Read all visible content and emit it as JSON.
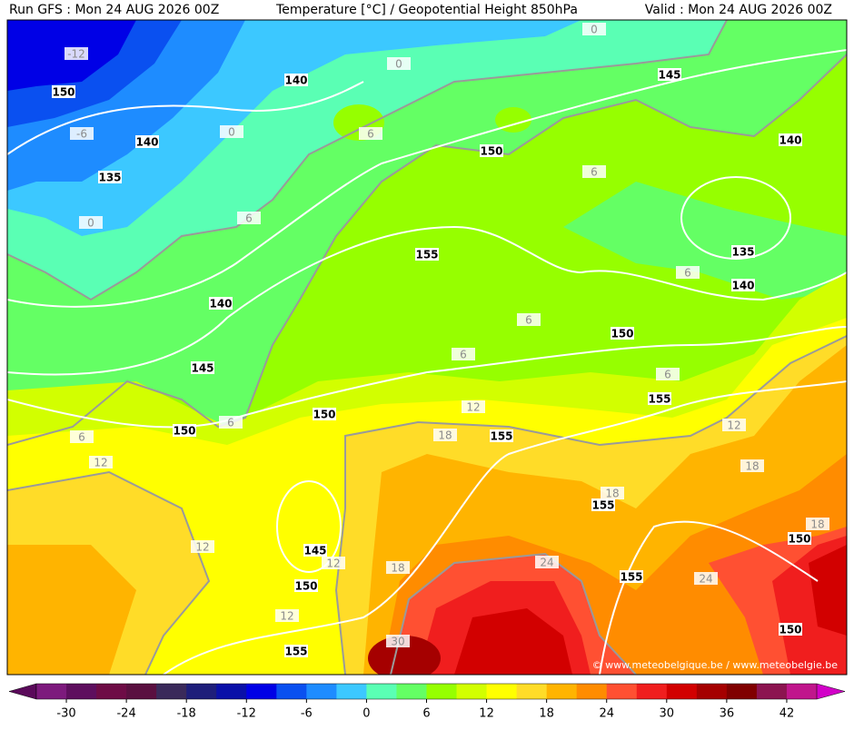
{
  "header": {
    "run": "Run GFS : Mon 24 AUG 2026 00Z",
    "title": "Temperature [°C] / Geopotential Height 850hPa",
    "valid": "Valid : Mon 24 AUG 2026 00Z"
  },
  "height_labels": [
    150,
    140,
    145,
    140,
    150,
    140,
    135,
    155,
    135,
    140,
    140,
    150,
    145,
    155,
    150,
    150,
    155,
    155,
    150,
    145,
    155,
    150,
    150,
    155
  ],
  "temperature_labels": [
    -12,
    0,
    0,
    0,
    -6,
    6,
    6,
    0,
    6,
    6,
    6,
    6,
    6,
    6,
    12,
    6,
    12,
    18,
    12,
    18,
    18,
    18,
    12,
    12,
    18,
    24,
    24,
    12,
    30
  ],
  "copyright": "© www.meteobelgique.be / www.meteobelgie.be",
  "colorbar": {
    "range": [
      -33,
      45
    ],
    "ticks": [
      -30,
      -24,
      -18,
      -12,
      -6,
      0,
      6,
      12,
      18,
      24,
      30,
      36,
      42
    ],
    "colors": [
      "#7d1a7d",
      "#5e0f5e",
      "#6e0c46",
      "#5a1040",
      "#3a2a5a",
      "#1e1e7a",
      "#0a10a8",
      "#0000e6",
      "#0a50f0",
      "#1e8cff",
      "#3cc8ff",
      "#5affb4",
      "#64ff64",
      "#96ff00",
      "#d2ff00",
      "#ffff00",
      "#ffdc28",
      "#ffb400",
      "#ff8c00",
      "#ff5032",
      "#f01e1e",
      "#d20000",
      "#a50000",
      "#800000",
      "#8c1450",
      "#c0168c"
    ],
    "under_color": "#5a0a5a",
    "over_color": "#d200c8"
  }
}
